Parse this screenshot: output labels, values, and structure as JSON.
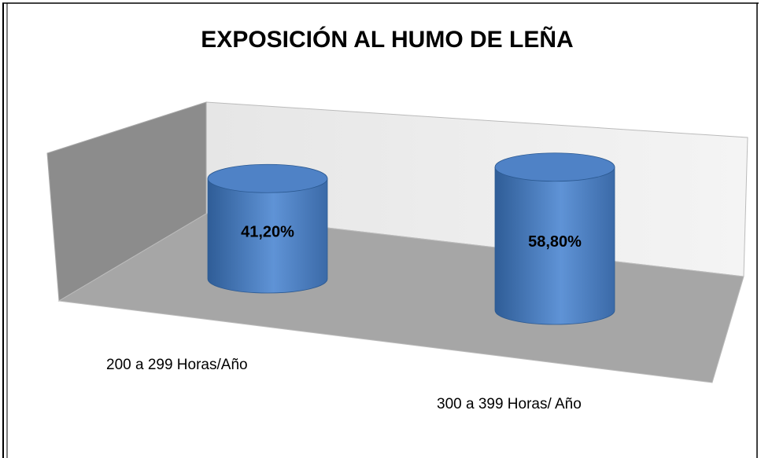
{
  "chart_data": {
    "type": "cylinder",
    "title": "EXPOSICIÓN AL HUMO DE LEÑA",
    "categories": [
      "200 a 299 Horas/Año",
      "300 a 399 Horas/ Año"
    ],
    "values": [
      41.2,
      58.8
    ],
    "value_labels": [
      "41,20%",
      "58,80%"
    ],
    "color": "#4a7cc0"
  }
}
